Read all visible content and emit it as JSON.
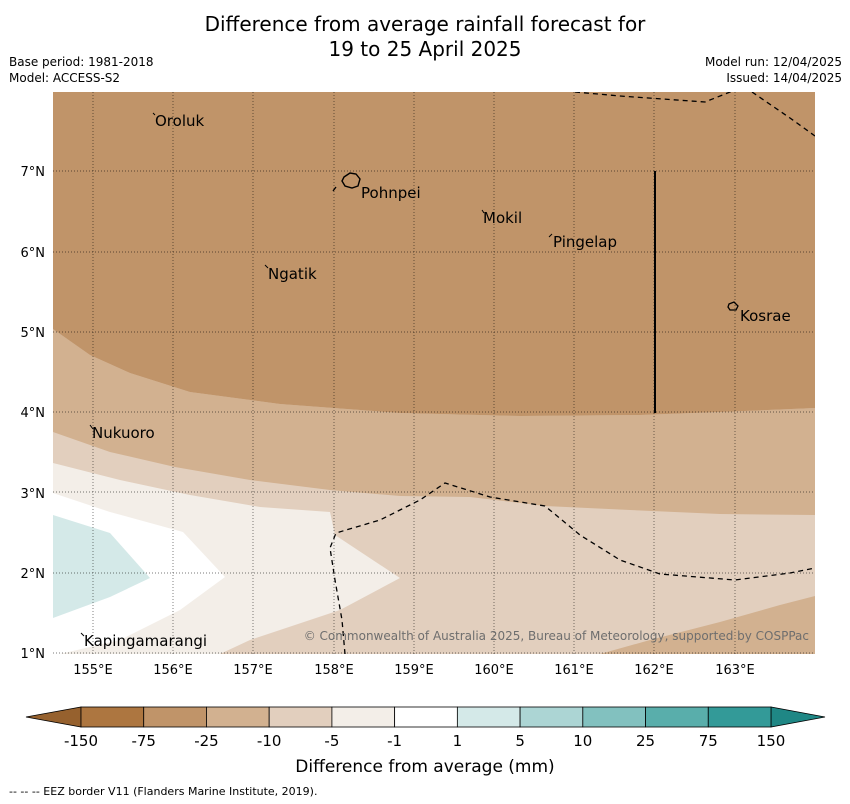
{
  "title": {
    "line1": "Difference from average rainfall forecast for",
    "line2": "19 to 25 April 2025"
  },
  "meta": {
    "base_period": "Base period: 1981-2018",
    "model": "Model: ACCESS-S2",
    "model_run": "Model run: 12/04/2025",
    "issued": "Issued: 14/04/2025"
  },
  "map": {
    "lat_ticks": [
      "7°N",
      "6°N",
      "5°N",
      "4°N",
      "3°N",
      "2°N",
      "1°N"
    ],
    "lon_ticks": [
      "155°E",
      "156°E",
      "157°E",
      "158°E",
      "159°E",
      "160°E",
      "161°E",
      "162°E",
      "163°E"
    ],
    "places": {
      "oroluk": "Oroluk",
      "pohnpei": "Pohnpei",
      "mokil": "Mokil",
      "pingelap": "Pingelap",
      "ngatik": "Ngatik",
      "kosrae": "Kosrae",
      "nukuoro": "Nukuoro",
      "kapingamarangi": "Kapingamarangi"
    },
    "copyright": "© Commonwealth of Australia 2025, Bureau of Meteorology, supported by COSPPac",
    "colors": {
      "lt_-25": "#c09469",
      "-25_-10": "#d2b190",
      "-10_-5": "#e2cfbe",
      "-5_-1": "#f3eee8",
      "-1_1": "#ffffff",
      "1_5": "#d4e9e8"
    }
  },
  "colorbar": {
    "labels": [
      "-150",
      "-75",
      "-25",
      "-10",
      "-5",
      "-1",
      "1",
      "5",
      "10",
      "25",
      "75",
      "150"
    ],
    "colors": [
      "#ad7640",
      "#c09469",
      "#d2b190",
      "#e2cfbe",
      "#f3eee8",
      "#ffffff",
      "#d4e9e8",
      "#acd5d4",
      "#82c1bf",
      "#59aeab",
      "#339a98"
    ],
    "extend_low": "#96612e",
    "extend_high": "#1f8785",
    "label": "Difference from average (mm)"
  },
  "footer": "--  --  -- EEZ border V11 (Flanders Marine Institute, 2019)."
}
